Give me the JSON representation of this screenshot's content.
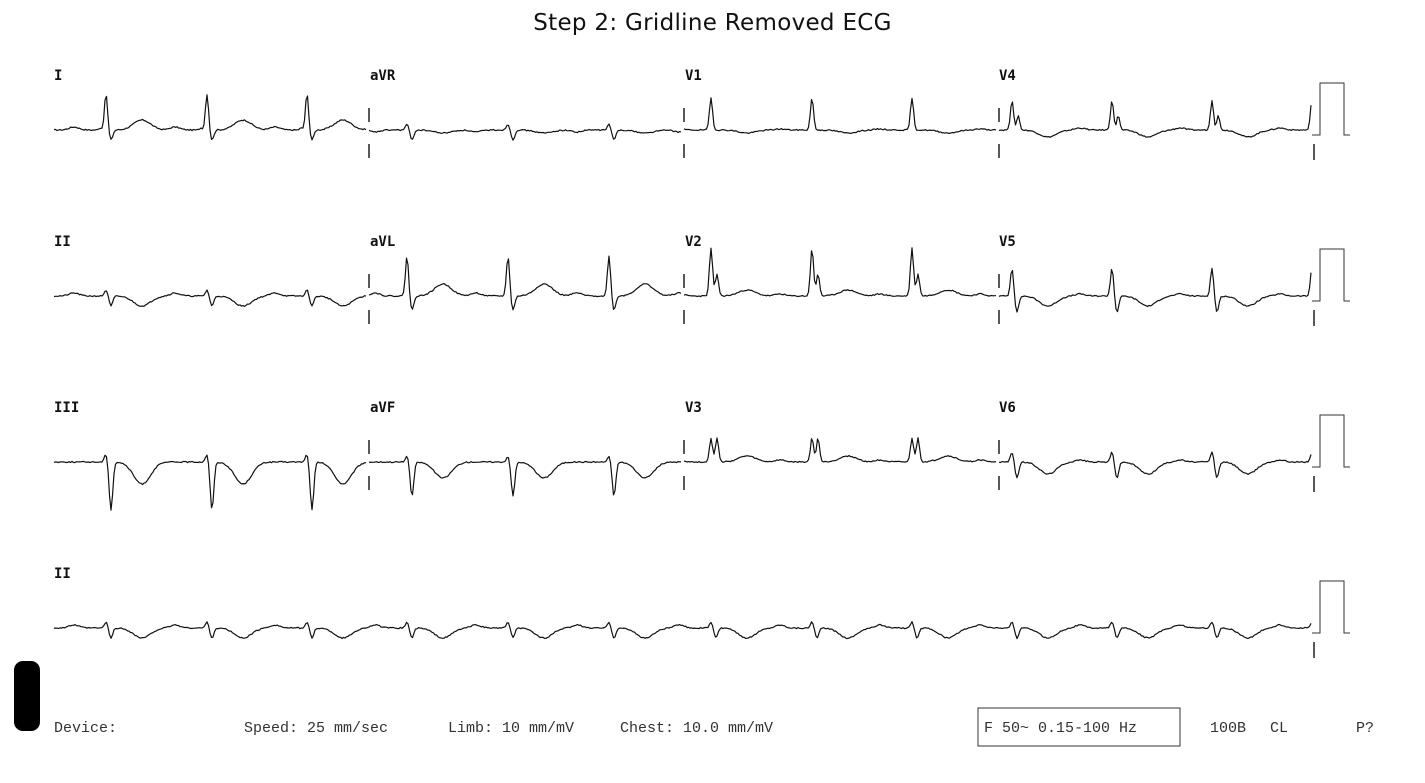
{
  "title": "Step 2: Gridline Removed ECG",
  "leads": [
    {
      "row": 0,
      "col": 0,
      "label": "I"
    },
    {
      "row": 0,
      "col": 1,
      "label": "aVR"
    },
    {
      "row": 0,
      "col": 2,
      "label": "V1"
    },
    {
      "row": 0,
      "col": 3,
      "label": "V4"
    },
    {
      "row": 1,
      "col": 0,
      "label": "II"
    },
    {
      "row": 1,
      "col": 1,
      "label": "aVL"
    },
    {
      "row": 1,
      "col": 2,
      "label": "V2"
    },
    {
      "row": 1,
      "col": 3,
      "label": "V5"
    },
    {
      "row": 2,
      "col": 0,
      "label": "III"
    },
    {
      "row": 2,
      "col": 1,
      "label": "aVF"
    },
    {
      "row": 2,
      "col": 2,
      "label": "V3"
    },
    {
      "row": 2,
      "col": 3,
      "label": "V6"
    },
    {
      "row": 3,
      "col": 0,
      "label": "II"
    }
  ],
  "footer": {
    "device": "Device:",
    "speed": "Speed: 25 mm/sec",
    "limb": "Limb: 10 mm/mV",
    "chest": "Chest: 10.0 mm/mV",
    "filter": "F 50~ 0.15-100 Hz",
    "code": "100B",
    "cl": "CL",
    "p": "P?"
  }
}
